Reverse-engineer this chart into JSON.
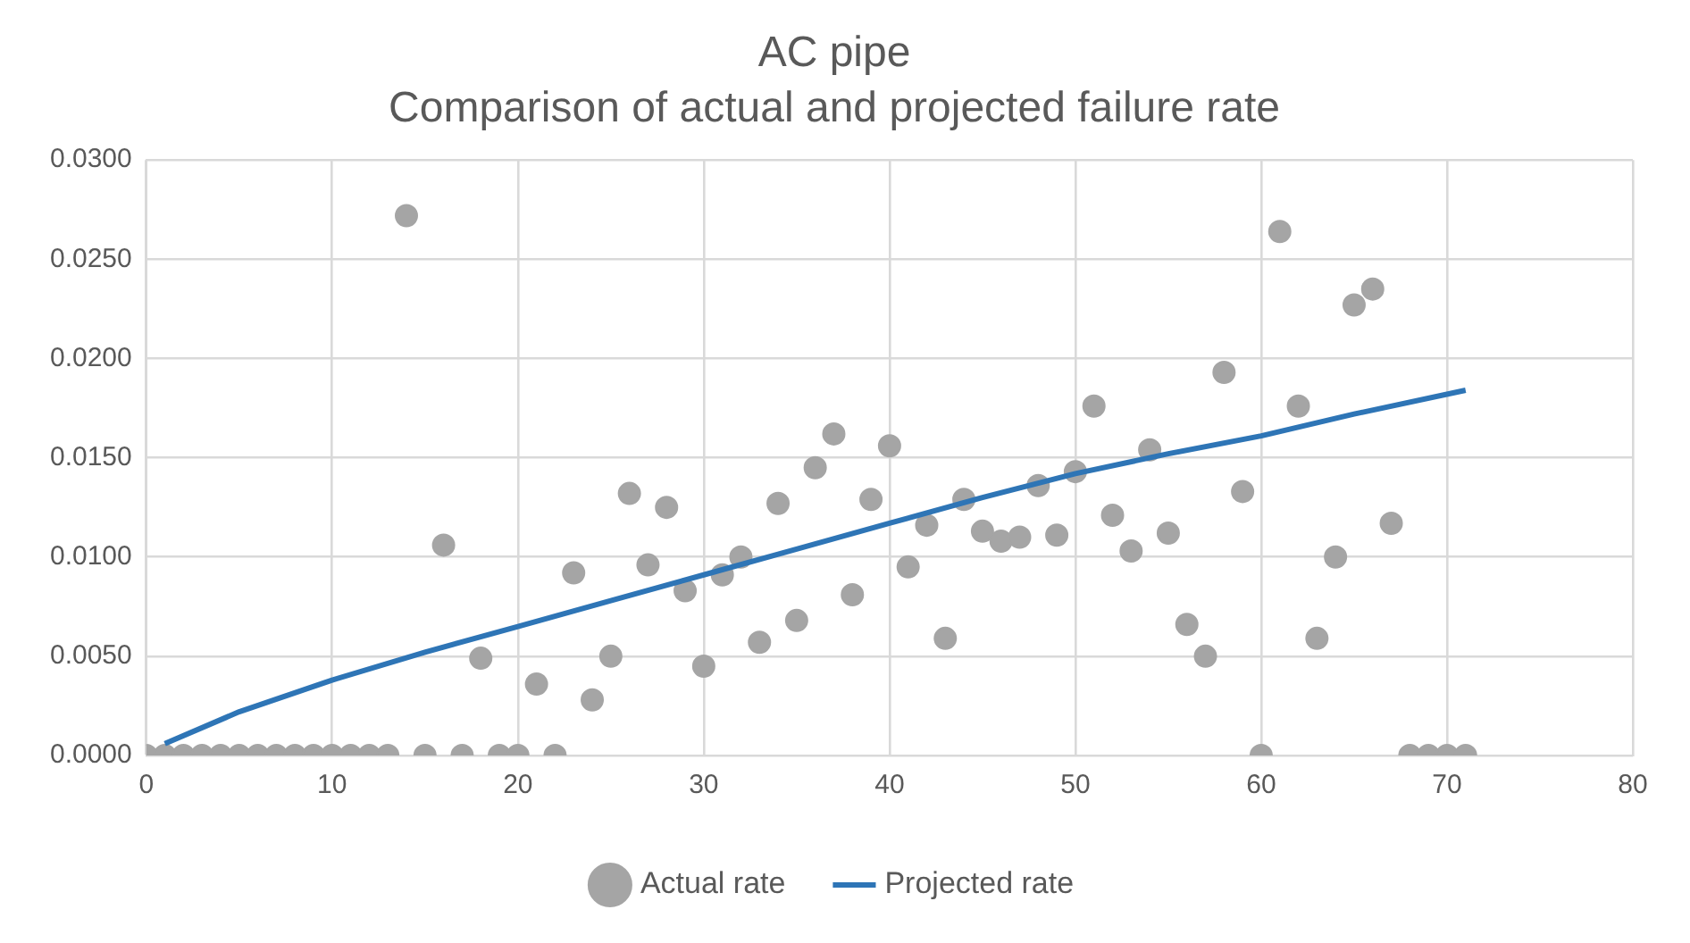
{
  "chart_data": {
    "type": "scatter",
    "title": "AC pipe",
    "subtitle": "Comparison of actual and projected failure rate",
    "xlim": [
      0,
      80
    ],
    "xticks": [
      0,
      10,
      20,
      30,
      40,
      50,
      60,
      70,
      80
    ],
    "ylim": [
      0,
      0.03
    ],
    "yticks": [
      {
        "value": 0,
        "label": "0.0000"
      },
      {
        "value": 0.005,
        "label": "0.0050"
      },
      {
        "value": 0.01,
        "label": "0.0100"
      },
      {
        "value": 0.015,
        "label": "0.0150"
      },
      {
        "value": 0.02,
        "label": "0.0200"
      },
      {
        "value": 0.025,
        "label": "0.0250"
      },
      {
        "value": 0.03,
        "label": "0.0300"
      }
    ],
    "grid": true,
    "legend": "bottom",
    "marker": "circle",
    "series": [
      {
        "name": "Actual rate",
        "type": "scatter",
        "color": "#a5a5a5",
        "x": [
          0,
          1,
          2,
          3,
          4,
          5,
          6,
          7,
          8,
          9,
          10,
          11,
          12,
          13,
          14,
          15,
          16,
          17,
          18,
          19,
          20,
          21,
          22,
          23,
          24,
          25,
          26,
          27,
          28,
          29,
          30,
          31,
          32,
          33,
          34,
          35,
          36,
          37,
          38,
          39,
          40,
          41,
          42,
          43,
          44,
          45,
          46,
          47,
          48,
          49,
          50,
          51,
          52,
          53,
          54,
          55,
          56,
          57,
          58,
          59,
          60,
          61,
          62,
          63,
          64,
          65,
          66,
          67,
          68,
          69,
          70,
          71
        ],
        "values": [
          0,
          0,
          0,
          0,
          0,
          0,
          0,
          0,
          0,
          0,
          0,
          0,
          0,
          0,
          0.0272,
          0,
          0.0106,
          0,
          0.0049,
          0,
          0,
          0.0036,
          0,
          0.0092,
          0.0028,
          0.005,
          0.0132,
          0.0096,
          0.0125,
          0.0083,
          0.0045,
          0.0091,
          0.01,
          0.0057,
          0.0127,
          0.0068,
          0.0145,
          0.0162,
          0.0081,
          0.0129,
          0.0156,
          0.0095,
          0.0116,
          0.0059,
          0.0129,
          0.0113,
          0.0108,
          0.011,
          0.0136,
          0.0111,
          0.0143,
          0.0176,
          0.0121,
          0.0103,
          0.0154,
          0.0112,
          0.0066,
          0.005,
          0.0193,
          0.0133,
          0,
          0.0264,
          0.0176,
          0.0059,
          0.01,
          0.0227,
          0.0235,
          0.0117,
          0,
          0,
          0,
          0
        ]
      },
      {
        "name": "Projected rate",
        "type": "line",
        "color": "#2e75b6",
        "marker": "none",
        "line_style": "solid",
        "x": [
          1,
          5,
          10,
          15,
          20,
          25,
          30,
          35,
          40,
          45,
          50,
          55,
          60,
          65,
          71
        ],
        "values": [
          0.0006,
          0.0022,
          0.0038,
          0.0052,
          0.0065,
          0.0078,
          0.0091,
          0.0104,
          0.0117,
          0.013,
          0.0142,
          0.0152,
          0.0161,
          0.0172,
          0.0184
        ]
      }
    ]
  }
}
